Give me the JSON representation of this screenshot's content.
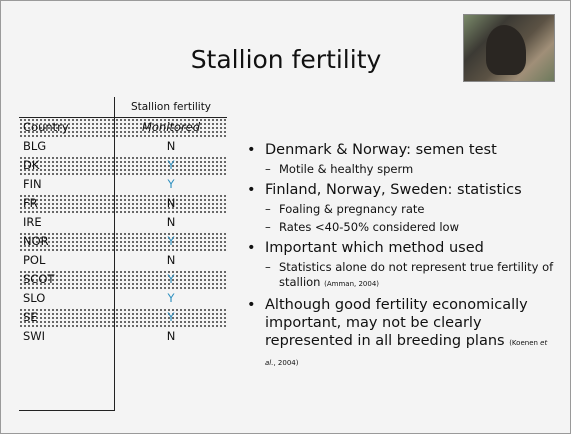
{
  "title": "Stallion fertility",
  "table": {
    "header": "Stallion fertility",
    "columns": [
      "Country",
      "Monitored"
    ],
    "rows": [
      [
        "BLG",
        "N"
      ],
      [
        "DK",
        "Y"
      ],
      [
        "FIN",
        "Y"
      ],
      [
        "FR",
        "N"
      ],
      [
        "IRE",
        "N"
      ],
      [
        "NOR",
        "Y"
      ],
      [
        "POL",
        "N"
      ],
      [
        "SCOT",
        "Y"
      ],
      [
        "SLO",
        "Y"
      ],
      [
        "SE",
        "Y"
      ],
      [
        "SWI",
        "N"
      ]
    ]
  },
  "bullets": [
    {
      "text": "Denmark & Norway: semen test",
      "sub": [
        "Motile & healthy sperm"
      ]
    },
    {
      "text": "Finland, Norway, Sweden: statistics",
      "sub": [
        "Foaling & pregnancy rate",
        "Rates  <40-50% considered low"
      ]
    },
    {
      "text": "Important which method used",
      "sub": [
        "Statistics alone do not represent true fertility of stallion"
      ],
      "citation": "(Amman, 2004)"
    },
    {
      "text": "Although good fertility economically important, may not be clearly represented in all breeding plans",
      "citation": [
        "(Koenen ",
        "et al.",
        ", 2004)"
      ]
    }
  ]
}
